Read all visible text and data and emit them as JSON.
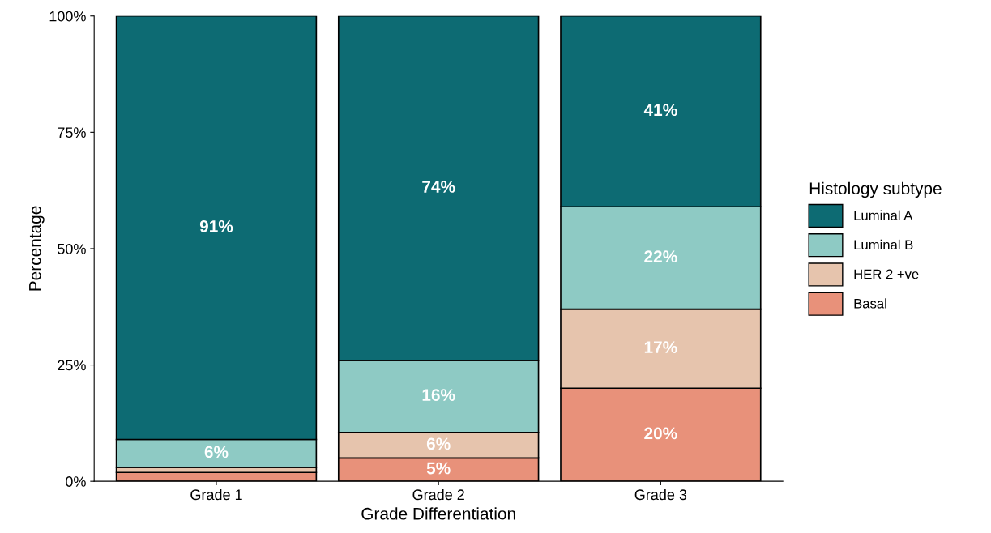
{
  "chart_data": {
    "type": "bar",
    "stacked": true,
    "xlabel": "Grade Differentiation",
    "ylabel": "Percentage",
    "legend_title": "Histology subtype",
    "legend": "right",
    "categories": [
      "Grade 1",
      "Grade 2",
      "Grade 3"
    ],
    "series": [
      {
        "name": "Basal",
        "color": "#e8917a",
        "values": [
          1.9,
          5,
          20
        ],
        "value_labels": [
          null,
          "5%",
          "20%"
        ]
      },
      {
        "name": "HER 2 +ve",
        "color": "#e6c4ad",
        "values": [
          1.1,
          5.5,
          17
        ],
        "value_labels": [
          null,
          "6%",
          "17%"
        ]
      },
      {
        "name": "Luminal B",
        "color": "#8ecac4",
        "values": [
          6,
          15.5,
          22
        ],
        "value_labels": [
          "6%",
          "16%",
          "22%"
        ]
      },
      {
        "name": "Luminal A",
        "color": "#0d6b73",
        "values": [
          91,
          74,
          41
        ],
        "value_labels": [
          "91%",
          "74%",
          "41%"
        ]
      }
    ],
    "ylim": [
      0,
      100
    ],
    "yticks": [
      {
        "value": 0,
        "label": "0%"
      },
      {
        "value": 25,
        "label": "25%"
      },
      {
        "value": 50,
        "label": "50%"
      },
      {
        "value": 75,
        "label": "75%"
      },
      {
        "value": 100,
        "label": "100%"
      }
    ],
    "grid": false
  }
}
